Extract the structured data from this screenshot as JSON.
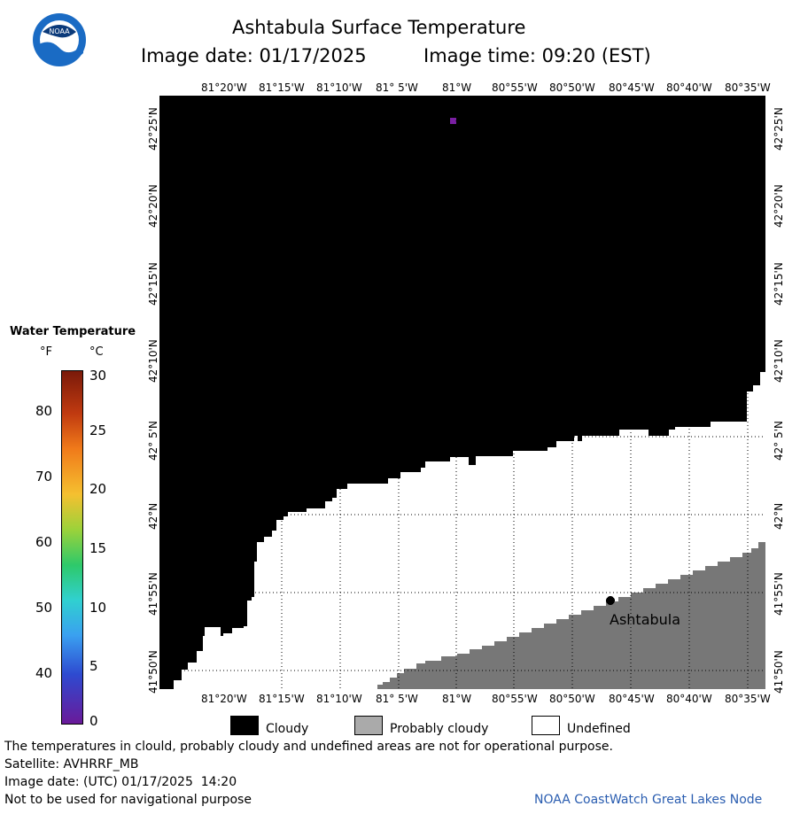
{
  "header": {
    "title": "Ashtabula Surface Temperature",
    "image_date_label": "Image date: 01/17/2025",
    "image_time_label": "Image time: 09:20 (EST)"
  },
  "logo": {
    "text": "NOAA"
  },
  "map": {
    "lon_labels": [
      "81°20'W",
      "81°15'W",
      "81°10'W",
      "81° 5'W",
      "81°W",
      "80°55'W",
      "80°50'W",
      "80°45'W",
      "80°40'W",
      "80°35'W"
    ],
    "lat_labels": [
      "42°25'N",
      "42°20'N",
      "42°15'N",
      "42°10'N",
      "42° 5'N",
      "42°N",
      "41°55'N",
      "41°50'N"
    ],
    "city_label": "Ashtabula",
    "colors": {
      "cloudy": "#000000",
      "undefined": "#ffffff",
      "land": "#777777",
      "grid": "#000000"
    }
  },
  "scale": {
    "title": "Water Temperature",
    "unit_f": "°F",
    "unit_c": "°C",
    "f_ticks": [
      "80",
      "70",
      "60",
      "50",
      "40"
    ],
    "c_ticks": [
      "30",
      "25",
      "20",
      "15",
      "10",
      "5",
      "0"
    ]
  },
  "legend": {
    "cloudy": "Cloudy",
    "probably_cloudy": "Probably cloudy",
    "undefined": "Undefined"
  },
  "footer": {
    "note": "The temperatures in clould, probably cloudy and undefined areas are not for operational purpose.",
    "satellite": "Satellite: AVHRRF_MB",
    "utc_date": "Image date: (UTC) 01/17/2025  14:20",
    "nav_note": "Not to be used for navigational purpose",
    "credit": "NOAA CoastWatch Great Lakes Node"
  }
}
